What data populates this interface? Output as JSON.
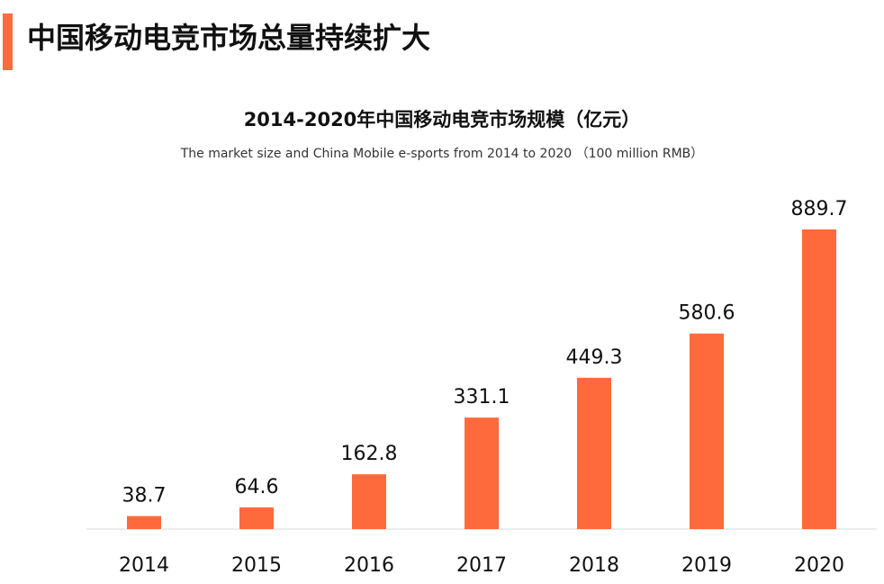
{
  "page": {
    "heading": "中国移动电竞市场总量持续扩大",
    "accent_color": "#ff6a3c"
  },
  "chart_data": {
    "type": "bar",
    "title": "2014-2020年中国移动电竞市场规模（亿元）",
    "subtitle": "The market size and China Mobile e-sports from 2014 to 2020 （100 million RMB）",
    "categories": [
      "2014",
      "2015",
      "2016",
      "2017",
      "2018",
      "2019",
      "2020"
    ],
    "values": [
      38.7,
      64.6,
      162.8,
      331.1,
      449.3,
      580.6,
      889.7
    ],
    "value_labels": [
      "38.7",
      "64.6",
      "162.8",
      "331.1",
      "449.3",
      "580.6",
      "889.7"
    ],
    "bar_color": "#ff6a3c",
    "xlabel": "",
    "ylabel": "",
    "ylim": [
      0,
      889.7
    ],
    "grid": false,
    "legend": "none"
  }
}
